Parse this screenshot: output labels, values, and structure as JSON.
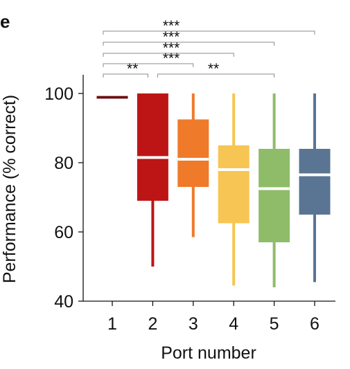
{
  "chart_data": {
    "type": "boxplot",
    "panel_label": "e",
    "xlabel": "Port number",
    "ylabel": "Performance (% correct)",
    "ylim": [
      40,
      100
    ],
    "yticks": [
      40,
      60,
      80,
      100
    ],
    "categories": [
      "1",
      "2",
      "3",
      "4",
      "5",
      "6"
    ],
    "boxes": [
      {
        "category": "1",
        "min": 98.5,
        "q1": 98.5,
        "median": 100,
        "q3": 100,
        "max": 100,
        "color": "#6e0f12"
      },
      {
        "category": "2",
        "min": 50,
        "q1": 69,
        "median": 81.5,
        "q3": 100,
        "max": 100,
        "color": "#bd1515"
      },
      {
        "category": "3",
        "min": 58.5,
        "q1": 73,
        "median": 81,
        "q3": 92.5,
        "max": 100,
        "color": "#ef7a2a"
      },
      {
        "category": "4",
        "min": 44.5,
        "q1": 62.5,
        "median": 78,
        "q3": 85,
        "max": 100,
        "color": "#f7c553"
      },
      {
        "category": "5",
        "min": 44,
        "q1": 57,
        "median": 72.5,
        "q3": 84,
        "max": 100,
        "color": "#8fbc69"
      },
      {
        "category": "6",
        "min": 45.5,
        "q1": 65,
        "median": 76.5,
        "q3": 84,
        "max": 100,
        "color": "#5a7594"
      }
    ],
    "significance": [
      {
        "from": "1",
        "to": "6",
        "label": "***"
      },
      {
        "from": "1",
        "to": "5",
        "label": "***"
      },
      {
        "from": "1",
        "to": "4",
        "label": "***"
      },
      {
        "from": "1",
        "to": "3",
        "label": "***"
      },
      {
        "from": "1",
        "to": "2",
        "label": "**"
      },
      {
        "from": "2",
        "to": "5",
        "label": "**"
      }
    ]
  }
}
